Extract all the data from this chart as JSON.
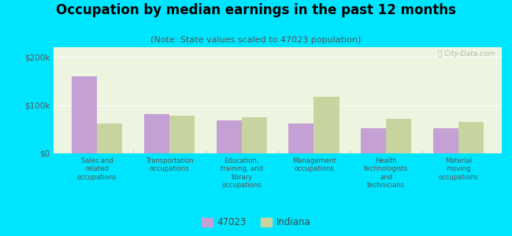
{
  "title": "Occupation by median earnings in the past 12 months",
  "subtitle": "(Note: State values scaled to 47023 population)",
  "categories": [
    "Sales and\nrelated\noccupations",
    "Transportation\noccupations",
    "Education,\ntraining, and\nlibrary\noccupations",
    "Management\noccupations",
    "Health\ntechnologists\nand\ntechnicians",
    "Material\nmoving\noccupations"
  ],
  "values_47023": [
    160000,
    82000,
    68000,
    62000,
    52000,
    52000
  ],
  "values_indiana": [
    62000,
    78000,
    75000,
    118000,
    72000,
    65000
  ],
  "color_47023": "#c4a0d4",
  "color_indiana": "#c8d4a0",
  "ylim": [
    0,
    220000
  ],
  "yticks": [
    0,
    100000,
    200000
  ],
  "yticklabels": [
    "$0",
    "$100k",
    "$200k"
  ],
  "background_color": "#edf5e0",
  "outer_background": "#00e5ff",
  "legend_labels": [
    "47023",
    "Indiana"
  ],
  "bar_width": 0.35,
  "title_fontsize": 12,
  "subtitle_fontsize": 8,
  "watermark": "City-Data.com"
}
